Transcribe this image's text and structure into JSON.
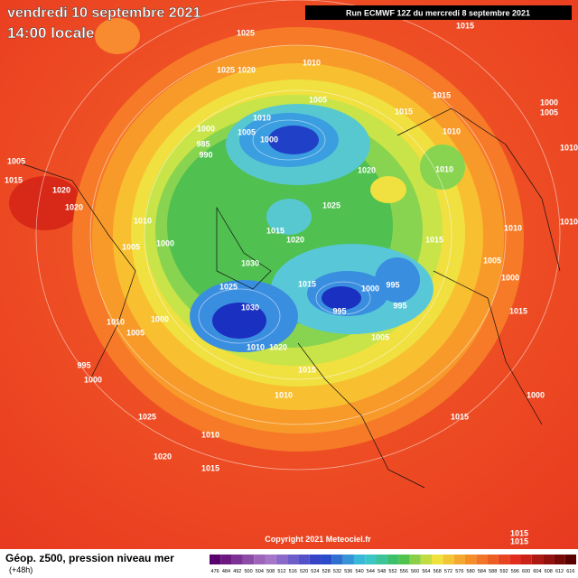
{
  "header": {
    "date": "vendredi 10 septembre 2021",
    "time": "14:00 locale",
    "run": "Run ECMWF 12Z du mercredi 8 septembre 2021"
  },
  "footer": {
    "title": "Géop. z500, pression niveau mer",
    "subtitle": "(+48h)",
    "copyright": "Copyright 2021 Meteociel.fr"
  },
  "colorbar": {
    "labels": [
      "476",
      "484",
      "492",
      "500",
      "504",
      "508",
      "512",
      "516",
      "520",
      "524",
      "528",
      "532",
      "536",
      "540",
      "544",
      "548",
      "552",
      "556",
      "560",
      "564",
      "568",
      "572",
      "576",
      "580",
      "584",
      "588",
      "592",
      "596",
      "600",
      "604",
      "608",
      "612",
      "616"
    ]
  },
  "isobar_labels": [
    "1025",
    "1015",
    "1010",
    "1025",
    "1020",
    "1015",
    "1005",
    "1015",
    "1000",
    "1005",
    "1010",
    "1000",
    "1005",
    "1010",
    "1000",
    "985",
    "990",
    "1005",
    "1010",
    "1010",
    "1020",
    "1015",
    "1020",
    "1020",
    "1025",
    "1010",
    "1005",
    "1000",
    "1015",
    "1020",
    "1015",
    "1010",
    "1010",
    "1005",
    "1030",
    "1025",
    "1015",
    "1000",
    "995",
    "1030",
    "995",
    "995",
    "1000",
    "1010",
    "1005",
    "1005",
    "1000",
    "1015",
    "1020",
    "1010",
    "1015",
    "995",
    "1000",
    "1010",
    "1000",
    "1025",
    "1015",
    "1010",
    "1020",
    "1015",
    "1015",
    "1015"
  ]
}
